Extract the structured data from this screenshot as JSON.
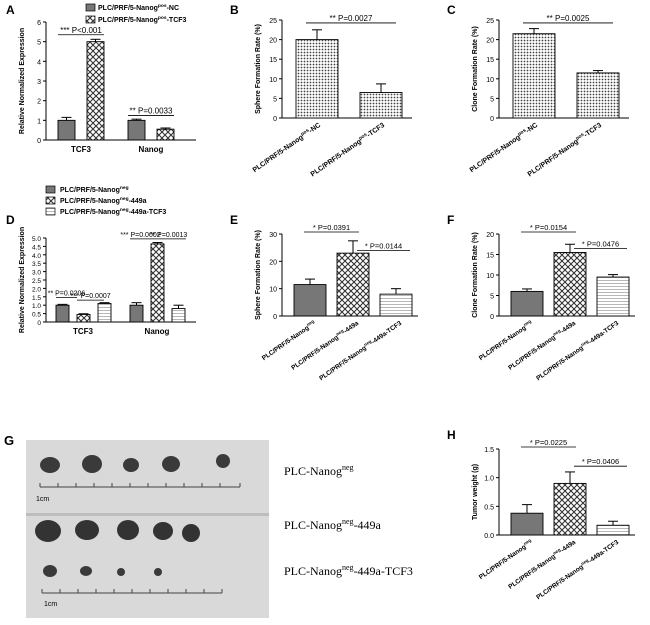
{
  "chart_data": [
    {
      "panel": "A",
      "type": "bar",
      "ylabel": "Relative Normalized Expression",
      "ylim": [
        0,
        6
      ],
      "yticks": [
        "0",
        "1",
        "2",
        "3",
        "4",
        "5",
        "6"
      ],
      "categories": [
        "TCF3",
        "Nanog"
      ],
      "series": [
        {
          "name": "PLC/PRF/5-Nanogpos-NC",
          "values": [
            1.0,
            1.0
          ],
          "errors": [
            0.15,
            0.06
          ],
          "fill": "dark"
        },
        {
          "name": "PLC/PRF/5-Nanogpos-TCF3",
          "values": [
            5.0,
            0.55
          ],
          "errors": [
            0.12,
            0.06
          ],
          "fill": "check"
        }
      ],
      "legend": [
        "PLC/PRF/5-Nanog",
        "pos",
        "-NC",
        "PLC/PRF/5-Nanog",
        "pos",
        "-TCF3"
      ],
      "annotations": [
        {
          "stars": "***",
          "text": "P<0.001"
        },
        {
          "stars": "**",
          "text": "P=0.0033"
        }
      ]
    },
    {
      "panel": "B",
      "type": "bar",
      "ylabel": "Sphere Formation Rate (%)",
      "ylim": [
        0,
        25
      ],
      "yticks": [
        "0",
        "5",
        "10",
        "15",
        "20",
        "25"
      ],
      "categories": [
        "PLC/PRF/5-Nanogpos-NC",
        "PLC/PRF/5-Nanogpos-TCF3"
      ],
      "category_parts": [
        [
          "PLC/PRF/5-Nanog",
          "pos",
          "-NC"
        ],
        [
          "PLC/PRF/5-Nanog",
          "pos",
          "-TCF3"
        ]
      ],
      "values": [
        20,
        6.5
      ],
      "errors": [
        2.5,
        2.2
      ],
      "fills": [
        "dots",
        "dots"
      ],
      "annotations": [
        {
          "stars": "**",
          "text": "P=0.0027"
        }
      ]
    },
    {
      "panel": "C",
      "type": "bar",
      "ylabel": "Clone  Formation Rate (%)",
      "ylim": [
        0,
        25
      ],
      "yticks": [
        "0",
        "5",
        "10",
        "15",
        "20",
        "25"
      ],
      "categories": [
        "PLC/PRF/5-Nanogpos-NC",
        "PLC/PRF/5-Nanogpos-TCF3"
      ],
      "category_parts": [
        [
          "PLC/PRF/5-Nanog",
          "pos",
          "-NC"
        ],
        [
          "PLC/PRF/5-Nanog",
          "pos",
          "-TCF3"
        ]
      ],
      "values": [
        21.5,
        11.5
      ],
      "errors": [
        1.3,
        0.6
      ],
      "fills": [
        "dots",
        "dots"
      ],
      "annotations": [
        {
          "stars": "**",
          "text": "P=0.0025"
        }
      ]
    },
    {
      "panel": "D",
      "type": "bar",
      "ylabel": "Relative Normalized Expression",
      "ylim": [
        0,
        5
      ],
      "yticks": [
        "0",
        "0.5",
        "1.0",
        "1.5",
        "2.0",
        "2.5",
        "3.0",
        "3.5",
        "4.0",
        "4.5",
        "5.0"
      ],
      "categories": [
        "TCF3",
        "Nanog"
      ],
      "series": [
        {
          "name": "PLC/PRF/5-Nanogneg",
          "values": [
            1.0,
            1.0
          ],
          "errors": [
            0.05,
            0.15
          ],
          "fill": "dark"
        },
        {
          "name": "PLC/PRF/5-Nanogneg-449a",
          "values": [
            0.45,
            4.65
          ],
          "errors": [
            0.04,
            0.08
          ],
          "fill": "check"
        },
        {
          "name": "PLC/PRF/5-Nanogneg-449a-TCF3",
          "values": [
            1.1,
            0.8
          ],
          "errors": [
            0.05,
            0.2
          ],
          "fill": "light"
        }
      ],
      "legend": [
        "PLC/PRF/5-Nanog",
        "neg",
        "",
        "PLC/PRF/5-Nanog",
        "neg",
        "-449a",
        "PLC/PRF/5-Nanog",
        "neg",
        "-449a-TCF3"
      ],
      "annotations": [
        {
          "stars": "**",
          "text": "P=0.0206"
        },
        {
          "stars": "***",
          "text": "P=0.0007"
        },
        {
          "stars": "***",
          "text": "P=0.0002"
        },
        {
          "stars": "**",
          "text": "P=0.0013"
        }
      ]
    },
    {
      "panel": "E",
      "type": "bar",
      "ylabel": "Sphere  Formation Rate (%)",
      "ylim": [
        0,
        30
      ],
      "yticks": [
        "0",
        "10",
        "20",
        "30"
      ],
      "categories": [
        "PLC/PRF/5-Nanogneg",
        "PLC/PRF/5-Nanogneg-449a",
        "PLC/PRF/5-Nanogneg-449a-TCF3"
      ],
      "category_parts": [
        [
          "PLC/PRF/5-Nanog",
          "neg",
          ""
        ],
        [
          "PLC/PRF/5-Nanog",
          "neg",
          "-449a"
        ],
        [
          "PLC/PRF/5-Nanog",
          "neg",
          "-449a-TCF3"
        ]
      ],
      "values": [
        11.5,
        23,
        8
      ],
      "errors": [
        2,
        4.5,
        2
      ],
      "fills": [
        "dark",
        "check",
        "light"
      ],
      "annotations": [
        {
          "stars": "*",
          "text": "P=0.0391"
        },
        {
          "stars": "*",
          "text": "P=0.0144"
        }
      ]
    },
    {
      "panel": "F",
      "type": "bar",
      "ylabel": "Clone  Formation Rate (%)",
      "ylim": [
        0,
        20
      ],
      "yticks": [
        "0",
        "5",
        "10",
        "15",
        "20"
      ],
      "categories": [
        "PLC/PRF/5-Nanogneg",
        "PLC/PRF/5-Nanogneg-449a",
        "PLC/PRF/5-Nanogneg-449a-TCF3"
      ],
      "category_parts": [
        [
          "PLC/PRF/5-Nanog",
          "neg",
          ""
        ],
        [
          "PLC/PRF/5-Nanog",
          "neg",
          "-449a"
        ],
        [
          "PLC/PRF/5-Nanog",
          "neg",
          "-449a-TCF3"
        ]
      ],
      "values": [
        6,
        15.5,
        9.5
      ],
      "errors": [
        0.6,
        2,
        0.6
      ],
      "fills": [
        "dark",
        "check",
        "light"
      ],
      "annotations": [
        {
          "stars": "*",
          "text": "P=0.0154"
        },
        {
          "stars": "*",
          "text": "P=0.0476"
        }
      ]
    },
    {
      "panel": "H",
      "type": "bar",
      "ylabel": "Tumor weight (g)",
      "ylim": [
        0,
        1.5
      ],
      "yticks": [
        "0.0",
        "0.5",
        "1.0",
        "1.5"
      ],
      "categories": [
        "PLC/PRF/5-Nanogneg",
        "PLC/PRF/5-Nanogneg-449a",
        "PLC/PRF/5-Nanogneg-449a-TCF3"
      ],
      "category_parts": [
        [
          "PLC/PRF/5-Nanog",
          "neg",
          ""
        ],
        [
          "PLC/PRF/5-Nanog",
          "neg",
          "-449a"
        ],
        [
          "PLC/PRF/5-Nanog",
          "neg",
          "-449a-TCF3"
        ]
      ],
      "values": [
        0.38,
        0.9,
        0.17
      ],
      "errors": [
        0.15,
        0.2,
        0.07
      ],
      "fills": [
        "dark",
        "check",
        "light"
      ],
      "annotations": [
        {
          "stars": "*",
          "text": "P=0.0225"
        },
        {
          "stars": "*",
          "text": "P=0.0406"
        }
      ]
    }
  ],
  "panel_g": {
    "label": "G",
    "ruler1": "1cm",
    "ruler2": "1cm",
    "rows": [
      {
        "base": "PLC-Nanog",
        "sup": "neg",
        "suffix": ""
      },
      {
        "base": "PLC-Nanog",
        "sup": "neg",
        "suffix": "-449a"
      },
      {
        "base": "PLC-Nanog",
        "sup": "neg",
        "suffix": "-449a-TCF3"
      }
    ]
  },
  "colors": {
    "dark": "#777777",
    "light": "#ffffff",
    "axis": "#000000",
    "photo": "#d9d9d9"
  }
}
